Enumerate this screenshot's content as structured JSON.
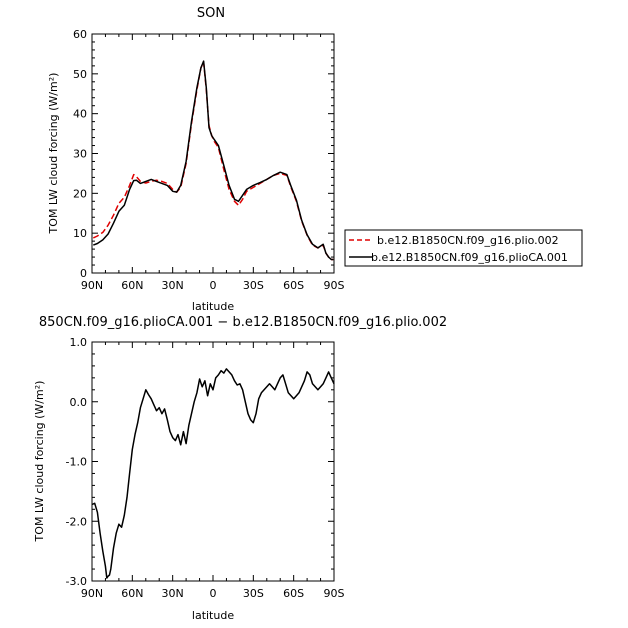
{
  "chart_data": [
    {
      "type": "line",
      "title": "SON",
      "xlabel": "latitude",
      "ylabel": "TOM LW cloud forcing (W/m²)",
      "xlim": [
        90,
        -90
      ],
      "ylim": [
        0,
        60
      ],
      "xticks": [
        90,
        60,
        30,
        0,
        -30,
        -60,
        -90
      ],
      "xtick_labels": [
        "90N",
        "60N",
        "30N",
        "0",
        "30S",
        "60S",
        "90S"
      ],
      "yticks": [
        0,
        10,
        20,
        30,
        40,
        50,
        60
      ],
      "ytick_labels": [
        "0",
        "10",
        "20",
        "30",
        "40",
        "50",
        "60"
      ],
      "grid": false,
      "legend_position": "right",
      "series": [
        {
          "name": "b.e12.B1850CN.f09_g16.plio.002",
          "color": "#e00000",
          "dash": "dashed",
          "x": [
            89,
            86,
            82,
            78,
            74,
            70,
            66,
            62,
            59,
            57,
            54,
            50,
            46,
            42,
            38,
            34,
            30,
            27,
            24,
            20,
            16,
            12,
            9,
            7,
            5,
            3,
            1,
            -1,
            -4,
            -8,
            -12,
            -16,
            -19,
            -22,
            -25,
            -30,
            -35,
            -40,
            -45,
            -50,
            -55,
            -58,
            -62,
            -66,
            -70,
            -74,
            -78,
            -82,
            -84,
            -86,
            -88,
            -89.5
          ],
          "y": [
            8.8,
            9.3,
            10.2,
            12.0,
            14.5,
            17.5,
            19.0,
            22.0,
            24.7,
            24.2,
            23.0,
            22.6,
            23.0,
            23.3,
            23.0,
            22.5,
            21.0,
            20.3,
            21.5,
            27.5,
            37.5,
            46.0,
            51.5,
            53.0,
            46.0,
            37.0,
            34.5,
            33.0,
            31.5,
            26.0,
            21.0,
            18.0,
            17.0,
            18.5,
            20.5,
            21.5,
            22.5,
            23.5,
            24.5,
            25.0,
            24.5,
            21.5,
            18.0,
            13.0,
            9.5,
            7.0,
            6.3,
            7.0,
            5.0,
            4.0,
            3.4,
            3.4
          ]
        },
        {
          "name": "b.e12.B1850CN.f09_g16.plioCA.001",
          "color": "#000000",
          "dash": "solid",
          "x": [
            89,
            86,
            82,
            78,
            74,
            70,
            66,
            62,
            59,
            57,
            54,
            50,
            46,
            42,
            38,
            34,
            30,
            27,
            24,
            20,
            16,
            12,
            9,
            7,
            5,
            3,
            1,
            -1,
            -4,
            -8,
            -12,
            -16,
            -19,
            -22,
            -25,
            -30,
            -35,
            -40,
            -45,
            -50,
            -55,
            -58,
            -62,
            -66,
            -70,
            -74,
            -78,
            -82,
            -84,
            -86,
            -88,
            -89.5
          ],
          "y": [
            7.0,
            7.4,
            8.3,
            9.8,
            12.5,
            15.5,
            17.0,
            21.0,
            23.2,
            23.3,
            22.5,
            23.0,
            23.5,
            23.0,
            22.5,
            22.0,
            20.5,
            20.3,
            22.0,
            28.0,
            38.0,
            46.5,
            51.5,
            53.2,
            46.5,
            36.5,
            34.5,
            33.5,
            32.0,
            27.0,
            22.0,
            18.5,
            18.0,
            19.5,
            21.0,
            22.0,
            22.7,
            23.5,
            24.5,
            25.3,
            24.7,
            21.8,
            18.3,
            13.2,
            9.6,
            7.2,
            6.3,
            7.2,
            5.0,
            4.0,
            3.4,
            3.4
          ]
        }
      ]
    },
    {
      "type": "line",
      "title": "850CN.f09_g16.plioCA.001 − b.e12.B1850CN.f09_g16.plio.002",
      "xlabel": "latitude",
      "ylabel": "TOM LW cloud forcing (W/m²)",
      "xlim": [
        90,
        -90
      ],
      "ylim": [
        -3.0,
        1.0
      ],
      "xticks": [
        90,
        60,
        30,
        0,
        -30,
        -60,
        -90
      ],
      "xtick_labels": [
        "90N",
        "60N",
        "30N",
        "0",
        "30S",
        "60S",
        "90S"
      ],
      "yticks": [
        -3.0,
        -2.0,
        -1.0,
        0.0,
        1.0
      ],
      "ytick_labels": [
        "-3.0",
        "-2.0",
        "-1.0",
        "0.0",
        "1.0"
      ],
      "grid": false,
      "series": [
        {
          "color": "#000000",
          "dash": "solid",
          "x": [
            90,
            88,
            86,
            84,
            82,
            80,
            79,
            78,
            77,
            76,
            74,
            72,
            70,
            68,
            66,
            64,
            62,
            60,
            58,
            56,
            54,
            52,
            50,
            48,
            46,
            44,
            42,
            40,
            38,
            36,
            34,
            32,
            30,
            28,
            26,
            24,
            22,
            20,
            18,
            16,
            14,
            12,
            10,
            8,
            6,
            4,
            2,
            0,
            -2,
            -4,
            -6,
            -8,
            -10,
            -12,
            -14,
            -16,
            -18,
            -20,
            -22,
            -24,
            -26,
            -28,
            -30,
            -32,
            -34,
            -36,
            -38,
            -40,
            -42,
            -44,
            -46,
            -48,
            -50,
            -52,
            -54,
            -56,
            -58,
            -60,
            -62,
            -64,
            -66,
            -68,
            -70,
            -72,
            -74,
            -76,
            -78,
            -80,
            -82,
            -84,
            -86,
            -88,
            -90
          ],
          "y": [
            -1.72,
            -1.7,
            -1.85,
            -2.2,
            -2.5,
            -2.75,
            -2.95,
            -2.92,
            -2.9,
            -2.8,
            -2.45,
            -2.2,
            -2.05,
            -2.1,
            -1.9,
            -1.6,
            -1.2,
            -0.8,
            -0.55,
            -0.35,
            -0.1,
            0.05,
            0.2,
            0.12,
            0.05,
            -0.05,
            -0.15,
            -0.1,
            -0.2,
            -0.12,
            -0.3,
            -0.5,
            -0.6,
            -0.65,
            -0.55,
            -0.72,
            -0.5,
            -0.7,
            -0.4,
            -0.2,
            0.0,
            0.15,
            0.38,
            0.25,
            0.35,
            0.1,
            0.3,
            0.2,
            0.4,
            0.45,
            0.52,
            0.48,
            0.55,
            0.5,
            0.45,
            0.35,
            0.28,
            0.3,
            0.2,
            0.0,
            -0.2,
            -0.3,
            -0.35,
            -0.2,
            0.05,
            0.15,
            0.2,
            0.25,
            0.3,
            0.25,
            0.2,
            0.3,
            0.4,
            0.45,
            0.3,
            0.15,
            0.1,
            0.05,
            0.1,
            0.15,
            0.25,
            0.35,
            0.5,
            0.45,
            0.3,
            0.25,
            0.2,
            0.25,
            0.3,
            0.4,
            0.5,
            0.4,
            0.3
          ]
        }
      ]
    }
  ]
}
